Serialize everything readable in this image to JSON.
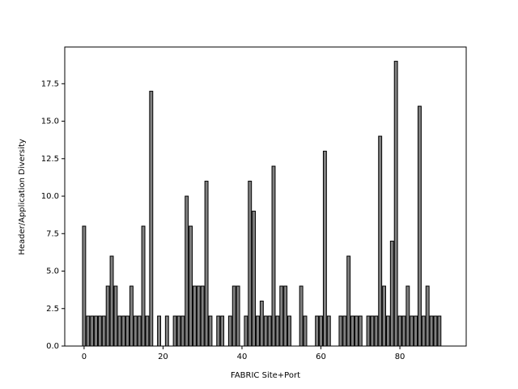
{
  "chart_data": {
    "type": "bar",
    "x_label": "FABRIC Site+Port",
    "y_label": "Header/Application Diversity",
    "x": [
      0,
      1,
      2,
      3,
      4,
      5,
      6,
      7,
      8,
      9,
      10,
      11,
      12,
      13,
      14,
      15,
      16,
      17,
      19,
      21,
      23,
      24,
      25,
      26,
      27,
      28,
      29,
      30,
      31,
      32,
      34,
      35,
      37,
      38,
      39,
      41,
      42,
      43,
      44,
      45,
      46,
      47,
      48,
      49,
      50,
      51,
      52,
      55,
      56,
      59,
      60,
      61,
      62,
      65,
      66,
      67,
      68,
      69,
      70,
      72,
      73,
      74,
      75,
      76,
      77,
      78,
      79,
      80,
      81,
      82,
      83,
      84,
      85,
      86,
      87,
      88,
      89,
      90
    ],
    "values": [
      8,
      2,
      2,
      2,
      2,
      2,
      4,
      6,
      4,
      2,
      2,
      2,
      4,
      2,
      2,
      8,
      2,
      17,
      2,
      2,
      2,
      2,
      2,
      10,
      8,
      4,
      4,
      4,
      11,
      2,
      2,
      2,
      2,
      4,
      4,
      2,
      11,
      9,
      2,
      3,
      2,
      2,
      12,
      2,
      4,
      4,
      2,
      4,
      2,
      2,
      2,
      13,
      2,
      2,
      2,
      6,
      2,
      2,
      2,
      2,
      2,
      2,
      14,
      4,
      2,
      7,
      19,
      2,
      2,
      4,
      2,
      2,
      16,
      2,
      4,
      2,
      2,
      2
    ],
    "color": "#808080",
    "xlim": [
      -4.9,
      96.8
    ],
    "ylim": [
      0,
      19.95
    ],
    "xticks": [
      0,
      20,
      40,
      60,
      80
    ],
    "yticks": [
      {
        "value": 0,
        "label": "0.0"
      },
      {
        "value": 2.5,
        "label": "2.5"
      },
      {
        "value": 5,
        "label": "5.0"
      },
      {
        "value": 7.5,
        "label": "7.5"
      },
      {
        "value": 10,
        "label": "10.0"
      },
      {
        "value": 12.5,
        "label": "12.5"
      },
      {
        "value": 15,
        "label": "15.0"
      },
      {
        "value": 17.5,
        "label": "17.5"
      }
    ]
  }
}
